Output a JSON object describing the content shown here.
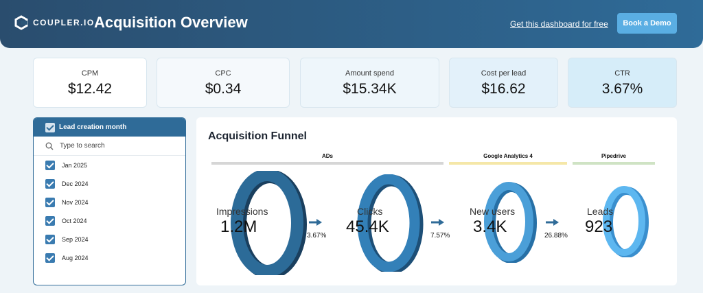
{
  "header": {
    "logo_text": "COUPLER.IO",
    "title": "Acquisition Overview",
    "free_link": "Get this dashboard for free",
    "demo_button": "Book a Demo"
  },
  "kpis": [
    {
      "label": "CPM",
      "value": "$12.42"
    },
    {
      "label": "CPC",
      "value": "$0.34"
    },
    {
      "label": "Amount spend",
      "value": "$15.34K"
    },
    {
      "label": "Cost per lead",
      "value": "$16.62"
    },
    {
      "label": "CTR",
      "value": "3.67%"
    }
  ],
  "filter": {
    "title": "Lead creation month",
    "search_placeholder": "Type to search",
    "items": [
      "Jan 2025",
      "Dec 2024",
      "Nov 2024",
      "Oct 2024",
      "Sep 2024",
      "Aug 2024"
    ]
  },
  "funnel": {
    "title": "Acquisition Funnel",
    "sources": [
      {
        "label": "ADs",
        "color": "#d6d6d6"
      },
      {
        "label": "Google Analytics 4",
        "color": "#f5e7a8"
      },
      {
        "label": "Pipedrive",
        "color": "#cfe3c4"
      }
    ],
    "stages": [
      {
        "label": "Impressions",
        "value": "1.2M"
      },
      {
        "label": "Clicks",
        "value": "45.4K"
      },
      {
        "label": "New users",
        "value": "3.4K"
      },
      {
        "label": "Leads",
        "value": "923"
      }
    ],
    "rates": [
      "3.67%",
      "7.57%",
      "26.88%"
    ]
  },
  "colors": {
    "header": "#2d5f87",
    "accent": "#5aaee3",
    "ring_dark": "#1f4e73",
    "ring_mid": "#2f7bb3",
    "ring_light": "#4aa8e6"
  }
}
